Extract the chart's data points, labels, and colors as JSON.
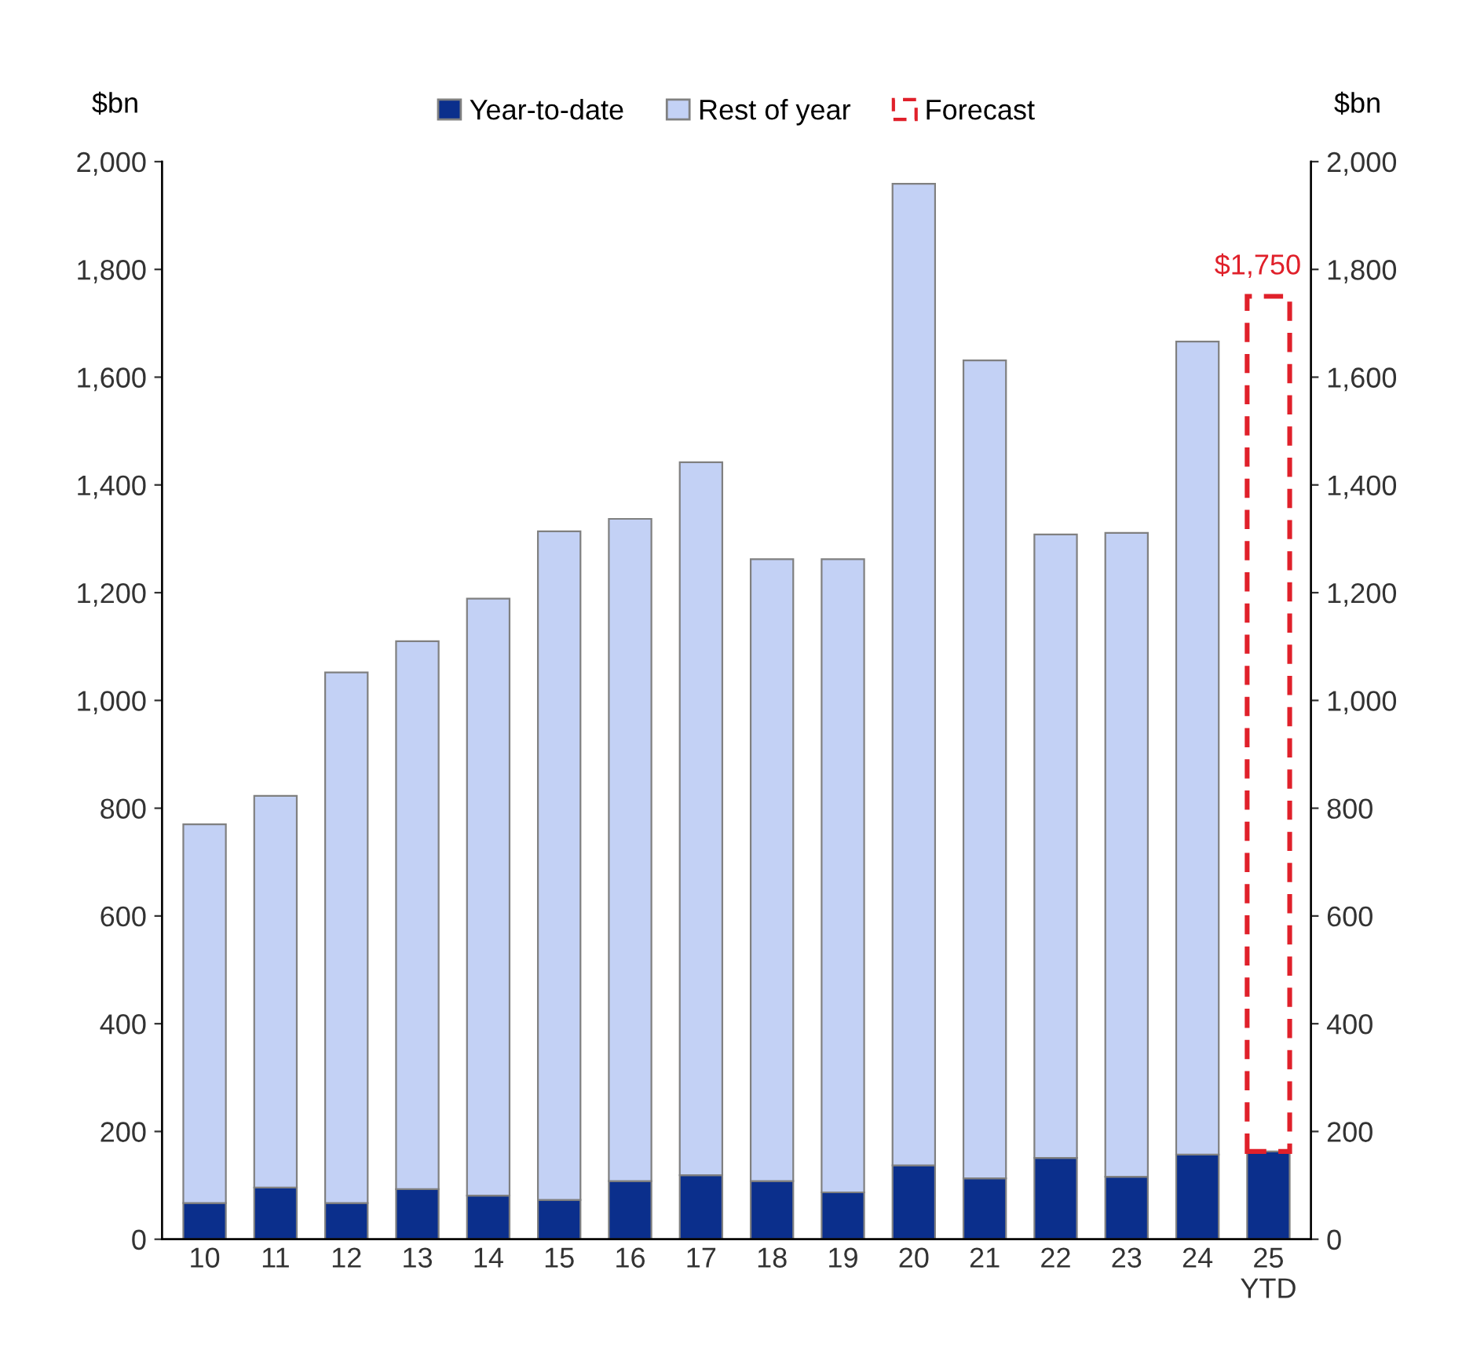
{
  "chart_data": {
    "type": "bar",
    "stacked": true,
    "ylabel": "$bn",
    "y2label": "$bn",
    "categories": [
      "10",
      "11",
      "12",
      "13",
      "14",
      "15",
      "16",
      "17",
      "18",
      "19",
      "20",
      "21",
      "22",
      "23",
      "24",
      "25\nYTD"
    ],
    "series": [
      {
        "name": "Year-to-date",
        "color": "#0b2f8c",
        "values": [
          67,
          96,
          67,
          93,
          81,
          73,
          108,
          119,
          108,
          87,
          137,
          113,
          151,
          116,
          157,
          163
        ]
      },
      {
        "name": "Rest of year",
        "color": "#c3d1f5",
        "values": [
          703,
          727,
          985,
          1017,
          1108,
          1241,
          1229,
          1323,
          1154,
          1175,
          1822,
          1518,
          1157,
          1195,
          1509,
          null
        ]
      },
      {
        "name": "Forecast",
        "color": "#e0202a",
        "line_style": "dashed",
        "values": [
          null,
          null,
          null,
          null,
          null,
          null,
          null,
          null,
          null,
          null,
          null,
          null,
          null,
          null,
          null,
          1587
        ]
      }
    ],
    "totals": [
      null,
      null,
      null,
      null,
      null,
      null,
      null,
      null,
      null,
      null,
      null,
      null,
      null,
      null,
      null,
      "$1,750"
    ],
    "ylim": [
      0,
      2000
    ],
    "yticks": [
      {
        "value": 0,
        "label": "0"
      },
      {
        "value": 200,
        "label": "200"
      },
      {
        "value": 400,
        "label": "400"
      },
      {
        "value": 600,
        "label": "600"
      },
      {
        "value": 800,
        "label": "800"
      },
      {
        "value": 1000,
        "label": "1,000"
      },
      {
        "value": 1200,
        "label": "1,200"
      },
      {
        "value": 1400,
        "label": "1,400"
      },
      {
        "value": 1600,
        "label": "1,600"
      },
      {
        "value": 1800,
        "label": "1,800"
      },
      {
        "value": 2000,
        "label": "2,000"
      }
    ],
    "y2lim": [
      0,
      2000
    ],
    "y2ticks": [
      {
        "value": 0,
        "label": "0"
      },
      {
        "value": 200,
        "label": "200"
      },
      {
        "value": 400,
        "label": "400"
      },
      {
        "value": 600,
        "label": "600"
      },
      {
        "value": 800,
        "label": "800"
      },
      {
        "value": 1000,
        "label": "1,000"
      },
      {
        "value": 1200,
        "label": "1,200"
      },
      {
        "value": 1400,
        "label": "1,400"
      },
      {
        "value": 1600,
        "label": "1,600"
      },
      {
        "value": 1800,
        "label": "1,800"
      },
      {
        "value": 2000,
        "label": "2,000"
      }
    ],
    "grid": false,
    "legend": "top"
  }
}
